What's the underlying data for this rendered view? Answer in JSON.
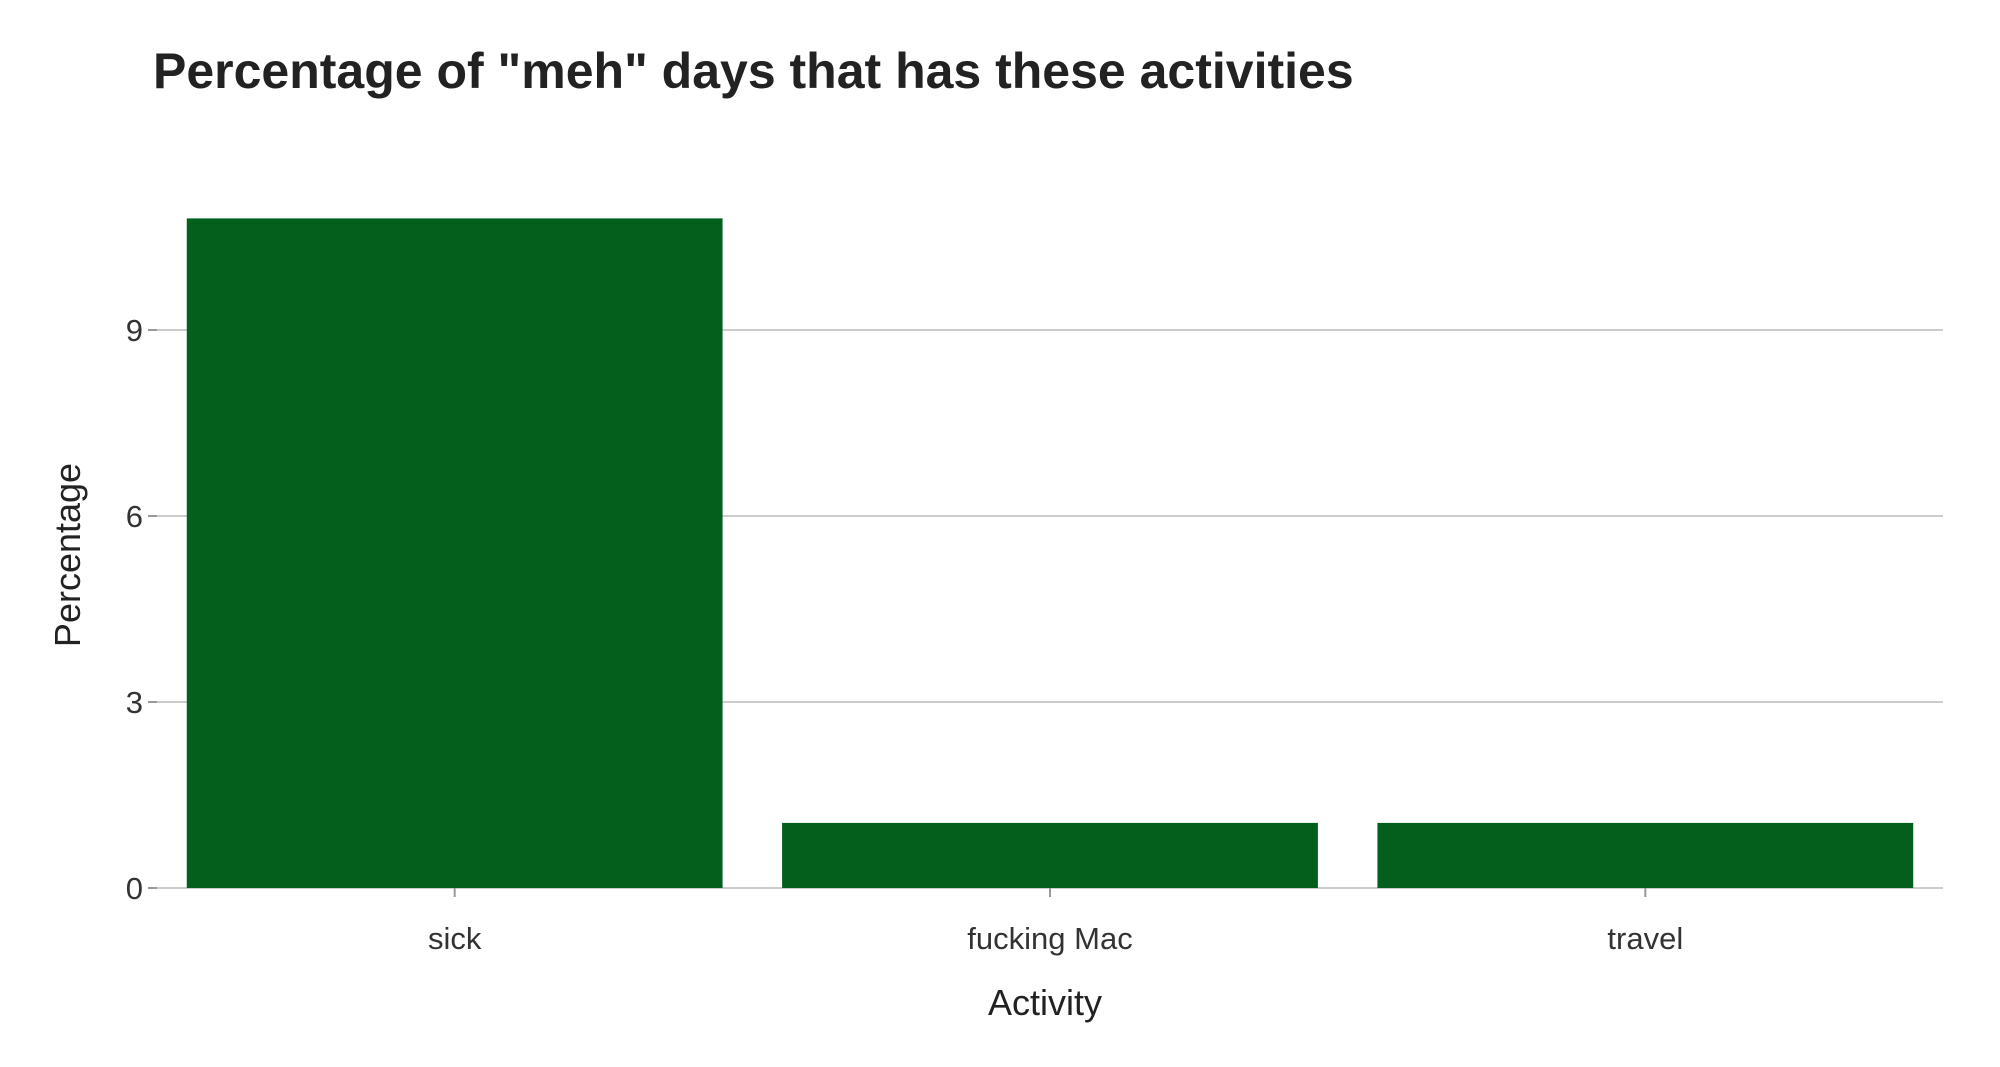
{
  "chart_data": {
    "type": "bar",
    "title": "Percentage of \"meh\" days that has these activities",
    "xlabel": "Activity",
    "ylabel": "Percentage",
    "categories": [
      "sick",
      "fucking Mac",
      "travel"
    ],
    "values": [
      10.8,
      1.05,
      1.05
    ],
    "ylim": [
      0,
      11.5
    ],
    "yticks": [
      0,
      3,
      6,
      9
    ],
    "bar_color": "#02601c",
    "grid": true,
    "legend": "none"
  }
}
